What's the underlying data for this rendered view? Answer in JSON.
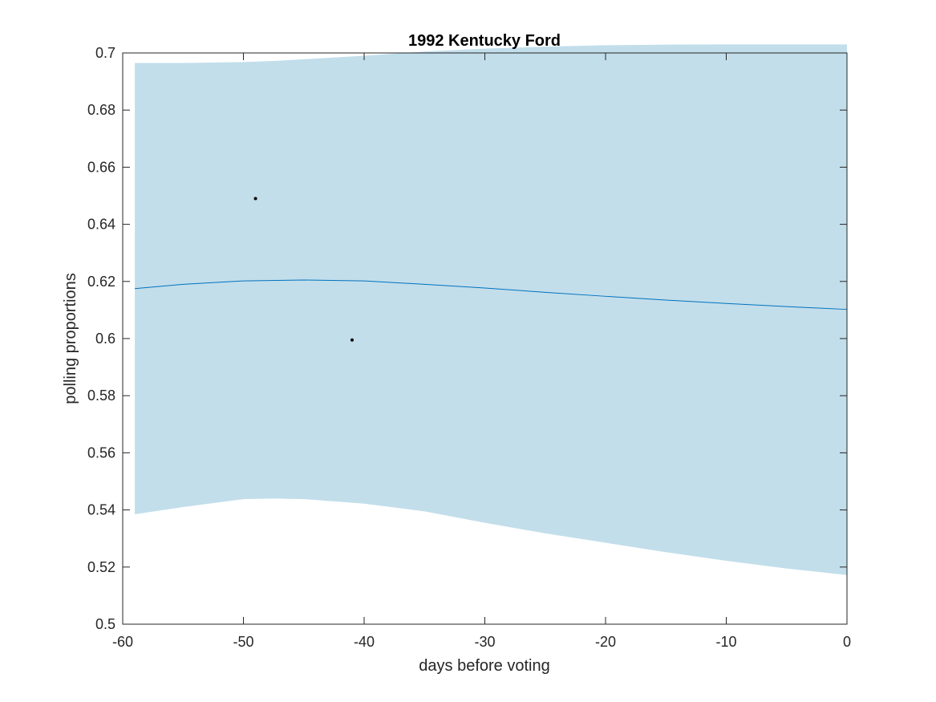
{
  "chart_data": {
    "type": "line",
    "title": "1992 Kentucky Ford",
    "xlabel": "days before voting",
    "ylabel": "polling proportions",
    "xlim": [
      -60,
      0
    ],
    "ylim": [
      0.5,
      0.7
    ],
    "xticks": [
      -60,
      -50,
      -40,
      -30,
      -20,
      -10,
      0
    ],
    "xtick_labels": [
      "-60",
      "-50",
      "-40",
      "-30",
      "-20",
      "-10",
      "0"
    ],
    "yticks": [
      0.5,
      0.52,
      0.54,
      0.56,
      0.58,
      0.6,
      0.62,
      0.64,
      0.66,
      0.68,
      0.7
    ],
    "ytick_labels": [
      "0.5",
      "0.52",
      "0.54",
      "0.56",
      "0.58",
      "0.6",
      "0.62",
      "0.64",
      "0.66",
      "0.68",
      "0.7"
    ],
    "grid": false,
    "legend": "none",
    "series": [
      {
        "kind": "line",
        "color": "#0072bd",
        "x": [
          -59,
          -55,
          -50,
          -45,
          -40,
          -35,
          -30,
          -25,
          -20,
          -15,
          -10,
          -5,
          0
        ],
        "y": [
          0.6175,
          0.619,
          0.6202,
          0.6205,
          0.6202,
          0.619,
          0.6177,
          0.6162,
          0.6148,
          0.6135,
          0.6123,
          0.6112,
          0.6102
        ]
      },
      {
        "kind": "band",
        "color": "#c2deeb",
        "x": [
          -59,
          -55,
          -50,
          -47.5,
          -45,
          -40,
          -35,
          -30,
          -25,
          -20,
          -15,
          -10,
          -5,
          0
        ],
        "upper": [
          0.6965,
          0.6965,
          0.6968,
          0.6972,
          0.6978,
          0.699,
          0.7005,
          0.7015,
          0.7022,
          0.7027,
          0.7029,
          0.703,
          0.703,
          0.703
        ],
        "lower": [
          0.5385,
          0.541,
          0.5438,
          0.544,
          0.5438,
          0.5422,
          0.5395,
          0.5355,
          0.5318,
          0.5285,
          0.5252,
          0.5222,
          0.5195,
          0.5172
        ]
      },
      {
        "kind": "scatter",
        "color": "#000000",
        "x": [
          -49,
          -41
        ],
        "y": [
          0.649,
          0.5995
        ]
      }
    ]
  }
}
